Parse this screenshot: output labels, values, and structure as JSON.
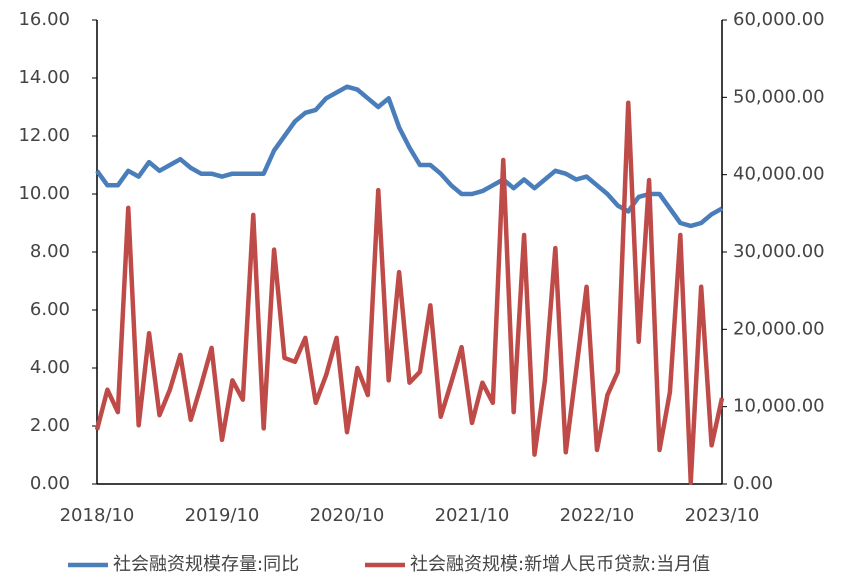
{
  "chart_data": {
    "type": "line",
    "categories": [
      "2018/10",
      null,
      null,
      null,
      null,
      null,
      null,
      null,
      null,
      null,
      null,
      null,
      "2019/10",
      null,
      null,
      null,
      null,
      null,
      null,
      null,
      null,
      null,
      null,
      null,
      "2020/10",
      null,
      null,
      null,
      null,
      null,
      null,
      null,
      null,
      null,
      null,
      null,
      "2021/10",
      null,
      null,
      null,
      null,
      null,
      null,
      null,
      null,
      null,
      null,
      null,
      "2022/10",
      null,
      null,
      null,
      null,
      null,
      null,
      null,
      null,
      null,
      null,
      null,
      "2023/10"
    ],
    "series": [
      {
        "name": "社会融资规模存量:同比",
        "color": "#4a7ebb",
        "values": [
          10.8,
          10.3,
          10.3,
          10.8,
          10.6,
          11.1,
          10.8,
          11.0,
          11.2,
          10.9,
          10.7,
          10.7,
          10.6,
          10.7,
          10.7,
          10.7,
          10.7,
          11.5,
          12.0,
          12.5,
          12.8,
          12.9,
          13.3,
          13.5,
          13.7,
          13.6,
          13.3,
          13.0,
          13.3,
          12.3,
          11.6,
          11.0,
          11.0,
          10.7,
          10.3,
          10.0,
          10.0,
          10.1,
          10.3,
          10.5,
          10.2,
          10.5,
          10.2,
          10.5,
          10.8,
          10.7,
          10.5,
          10.6,
          10.3,
          10.0,
          9.6,
          9.4,
          9.9,
          10.0,
          10.0,
          9.5,
          9.0,
          8.9,
          9.0,
          9.3,
          9.5
        ]
      },
      {
        "name": "社会融资规模:新增人民币贷款:当月值",
        "color": "#be4b48",
        "axis": "y2",
        "values": [
          7000,
          12200,
          9300,
          35700,
          7600,
          19500,
          8900,
          12200,
          16700,
          8300,
          12800,
          17600,
          5700,
          13400,
          10900,
          34800,
          7200,
          30300,
          16300,
          15800,
          18900,
          10500,
          14100,
          18900,
          6700,
          15000,
          11500,
          38000,
          13400,
          27400,
          13100,
          14500,
          23100,
          8700,
          13100,
          17700,
          7900,
          13100,
          10500,
          41900,
          9300,
          32200,
          3800,
          13400,
          30500,
          4100,
          14700,
          25500,
          4400,
          11500,
          14500,
          49300,
          18400,
          39300,
          4400,
          11900,
          32200,
          200,
          25500,
          5000,
          11100
        ]
      }
    ],
    "ylim": [
      0,
      16
    ],
    "yticks": [
      {
        "value": 0,
        "label": "0.00"
      },
      {
        "value": 2,
        "label": "2.00"
      },
      {
        "value": 4,
        "label": "4.00"
      },
      {
        "value": 6,
        "label": "6.00"
      },
      {
        "value": 8,
        "label": "8.00"
      },
      {
        "value": 10,
        "label": "10.00"
      },
      {
        "value": 12,
        "label": "12.00"
      },
      {
        "value": 14,
        "label": "14.00"
      },
      {
        "value": 16,
        "label": "16.00"
      }
    ],
    "y2lim": [
      0,
      60000
    ],
    "y2ticks": [
      {
        "value": 0,
        "label": "0.00"
      },
      {
        "value": 10000,
        "label": "10,000.00"
      },
      {
        "value": 20000,
        "label": "20,000.00"
      },
      {
        "value": 30000,
        "label": "30,000.00"
      },
      {
        "value": 40000,
        "label": "40,000.00"
      },
      {
        "value": 50000,
        "label": "50,000.00"
      },
      {
        "value": 60000,
        "label": "60,000.00"
      }
    ],
    "legend": "bottom"
  }
}
